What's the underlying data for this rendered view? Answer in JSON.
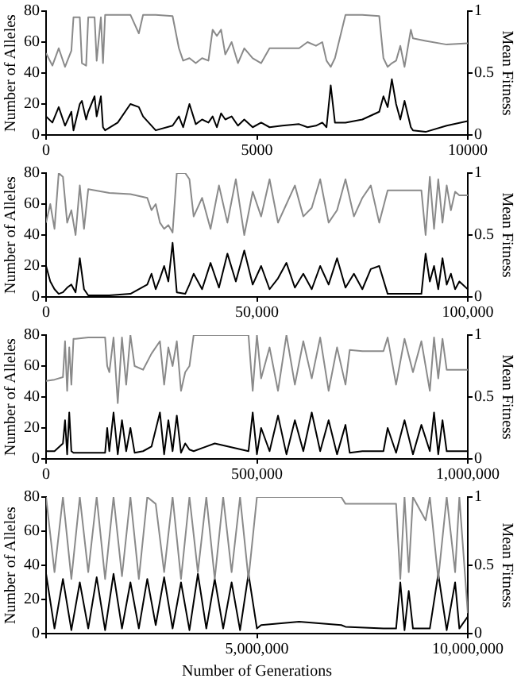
{
  "chart_data": [
    {
      "type": "line",
      "ylabel": "Number of Alleles",
      "y2label": "Mean Fitness",
      "ylim": [
        0,
        80
      ],
      "yticks": [
        0,
        20,
        40,
        60,
        80
      ],
      "y2lim": [
        0,
        1
      ],
      "y2ticks": [
        0,
        0.5,
        1
      ],
      "xlim": [
        0,
        10000
      ],
      "xticks": [
        0,
        5000,
        10000
      ],
      "grid": false,
      "legend": false,
      "x": [
        0,
        150,
        300,
        450,
        600,
        650,
        800,
        850,
        950,
        1000,
        1150,
        1200,
        1300,
        1350,
        1400,
        1700,
        2000,
        2200,
        2300,
        2600,
        3000,
        3150,
        3250,
        3400,
        3550,
        3700,
        3850,
        3950,
        4050,
        4150,
        4250,
        4400,
        4550,
        4700,
        4900,
        5100,
        5300,
        5600,
        6000,
        6200,
        6400,
        6550,
        6650,
        6750,
        6850,
        7100,
        7500,
        7900,
        8000,
        8100,
        8200,
        8300,
        8400,
        8500,
        8650,
        8700,
        9000,
        9500,
        10000
      ],
      "series": [
        {
          "color": "#8a8a8a",
          "axis": "y2",
          "values": [
            0.66,
            0.56,
            0.7,
            0.55,
            0.68,
            0.95,
            0.95,
            0.58,
            0.56,
            0.95,
            0.95,
            0.6,
            0.95,
            0.58,
            0.97,
            0.97,
            0.97,
            0.82,
            0.97,
            0.97,
            0.96,
            0.7,
            0.6,
            0.62,
            0.58,
            0.62,
            0.6,
            0.85,
            0.8,
            0.85,
            0.65,
            0.75,
            0.58,
            0.7,
            0.62,
            0.58,
            0.7,
            0.7,
            0.7,
            0.75,
            0.72,
            0.75,
            0.6,
            0.55,
            0.62,
            0.97,
            0.97,
            0.96,
            0.62,
            0.55,
            0.58,
            0.6,
            0.72,
            0.55,
            0.85,
            0.78,
            0.76,
            0.73,
            0.74
          ]
        },
        {
          "color": "#000000",
          "values": [
            12,
            8,
            18,
            6,
            15,
            3,
            20,
            22,
            10,
            15,
            25,
            12,
            25,
            5,
            3,
            8,
            20,
            18,
            12,
            3,
            6,
            12,
            5,
            20,
            7,
            10,
            8,
            12,
            5,
            14,
            10,
            12,
            6,
            10,
            5,
            8,
            5,
            6,
            7,
            5,
            6,
            8,
            5,
            32,
            8,
            8,
            10,
            15,
            25,
            18,
            36,
            20,
            10,
            22,
            5,
            3,
            2,
            6,
            9
          ]
        }
      ]
    },
    {
      "type": "line",
      "ylabel": "Number of Alleles",
      "y2label": "Mean Fitness",
      "ylim": [
        0,
        80
      ],
      "yticks": [
        0,
        20,
        40,
        60,
        80
      ],
      "y2lim": [
        0,
        1
      ],
      "y2ticks": [
        0,
        0.5,
        1
      ],
      "xlim": [
        0,
        100000
      ],
      "xticks": [
        0,
        {
          "value": 50000,
          "label": "50,000"
        },
        {
          "value": 100000,
          "label": "100,000"
        }
      ],
      "grid": false,
      "legend": false,
      "x": [
        0,
        1000,
        2000,
        3000,
        4000,
        5000,
        6000,
        7000,
        8000,
        9000,
        10000,
        15000,
        20000,
        24000,
        25000,
        26000,
        27000,
        28000,
        29000,
        30000,
        31000,
        33000,
        34000,
        35000,
        37000,
        39000,
        41000,
        43000,
        45000,
        47000,
        49000,
        51000,
        53000,
        55000,
        57000,
        59000,
        61000,
        63000,
        65000,
        67000,
        69000,
        71000,
        73000,
        75000,
        77000,
        79000,
        81000,
        85000,
        89000,
        90000,
        91000,
        92000,
        93000,
        94000,
        95000,
        96000,
        97000,
        98000,
        100000
      ],
      "series": [
        {
          "color": "#8a8a8a",
          "axis": "y2",
          "values": [
            0.6,
            0.75,
            0.55,
            1.0,
            0.97,
            0.6,
            0.7,
            0.5,
            0.9,
            0.55,
            0.87,
            0.84,
            0.83,
            0.8,
            0.7,
            0.75,
            0.6,
            0.55,
            0.58,
            0.52,
            1.0,
            1.0,
            0.95,
            0.65,
            0.8,
            0.55,
            0.9,
            0.6,
            0.95,
            0.5,
            0.85,
            0.65,
            0.95,
            0.6,
            0.75,
            0.9,
            0.65,
            0.72,
            0.95,
            0.6,
            0.7,
            0.95,
            0.65,
            0.8,
            0.9,
            0.6,
            0.86,
            0.86,
            0.86,
            0.5,
            0.97,
            0.55,
            0.95,
            0.6,
            0.9,
            0.7,
            0.85,
            0.82,
            0.82
          ]
        },
        {
          "color": "#000000",
          "values": [
            20,
            10,
            5,
            2,
            3,
            6,
            8,
            3,
            25,
            5,
            1,
            1,
            2,
            8,
            15,
            5,
            12,
            20,
            10,
            35,
            3,
            2,
            8,
            15,
            5,
            22,
            6,
            28,
            10,
            30,
            8,
            20,
            5,
            12,
            22,
            6,
            15,
            5,
            20,
            8,
            25,
            6,
            15,
            5,
            18,
            20,
            2,
            2,
            2,
            28,
            10,
            20,
            5,
            25,
            8,
            15,
            5,
            10,
            5
          ]
        }
      ]
    },
    {
      "type": "line",
      "ylabel": "Number of Alleles",
      "y2label": "Mean Fitness",
      "ylim": [
        0,
        80
      ],
      "yticks": [
        0,
        20,
        40,
        60,
        80
      ],
      "y2lim": [
        0,
        1
      ],
      "y2ticks": [
        0,
        0.5,
        1
      ],
      "xlim": [
        0,
        1000000
      ],
      "xticks": [
        0,
        {
          "value": 500000,
          "label": "500,000"
        },
        {
          "value": 1000000,
          "label": "1,000,000"
        }
      ],
      "grid": false,
      "legend": false,
      "x": [
        0,
        20000,
        40000,
        45000,
        50000,
        55000,
        60000,
        65000,
        70000,
        100000,
        140000,
        145000,
        150000,
        160000,
        170000,
        180000,
        190000,
        200000,
        210000,
        230000,
        250000,
        270000,
        280000,
        290000,
        300000,
        310000,
        320000,
        330000,
        340000,
        350000,
        400000,
        480000,
        490000,
        500000,
        510000,
        530000,
        550000,
        570000,
        590000,
        610000,
        630000,
        650000,
        670000,
        690000,
        710000,
        720000,
        750000,
        800000,
        810000,
        830000,
        850000,
        870000,
        890000,
        910000,
        920000,
        930000,
        940000,
        950000,
        1000000
      ],
      "series": [
        {
          "color": "#8a8a8a",
          "axis": "y2",
          "values": [
            0.63,
            0.64,
            0.66,
            0.95,
            0.55,
            0.9,
            0.6,
            0.97,
            0.97,
            0.98,
            0.98,
            0.75,
            0.7,
            0.98,
            0.45,
            0.98,
            0.6,
            1.0,
            0.75,
            0.72,
            0.85,
            0.95,
            0.6,
            0.9,
            0.75,
            0.95,
            0.55,
            0.7,
            0.75,
            1.0,
            1.0,
            1.0,
            0.55,
            1.0,
            0.65,
            0.9,
            0.55,
            1.0,
            0.6,
            0.95,
            0.65,
            0.98,
            0.55,
            0.9,
            0.6,
            0.88,
            0.87,
            0.87,
            0.98,
            0.6,
            0.97,
            0.7,
            0.95,
            0.55,
            0.98,
            0.65,
            0.97,
            0.72,
            0.72
          ]
        },
        {
          "color": "#000000",
          "values": [
            5,
            5,
            10,
            25,
            3,
            30,
            5,
            4,
            4,
            4,
            4,
            20,
            5,
            30,
            3,
            25,
            5,
            20,
            4,
            5,
            8,
            30,
            3,
            25,
            5,
            28,
            4,
            10,
            6,
            5,
            10,
            5,
            30,
            3,
            20,
            5,
            28,
            3,
            25,
            5,
            30,
            5,
            25,
            3,
            22,
            4,
            5,
            5,
            20,
            4,
            25,
            3,
            22,
            5,
            30,
            3,
            25,
            5,
            5
          ]
        }
      ]
    },
    {
      "type": "line",
      "ylabel": "Number of Alleles",
      "y2label": "Mean Fitness",
      "xlabel": "Number of Generations",
      "ylim": [
        0,
        80
      ],
      "yticks": [
        0,
        20,
        40,
        60,
        80
      ],
      "y2lim": [
        0,
        1
      ],
      "y2ticks": [
        0,
        0.5,
        1
      ],
      "xlim": [
        0,
        10000000
      ],
      "xticks": [
        {
          "value": 0,
          "label": null
        },
        {
          "value": 5000000,
          "label": "5,000,000"
        },
        {
          "value": 10000000,
          "label": "10,000,000"
        }
      ],
      "grid": false,
      "legend": false,
      "x": [
        0,
        200000,
        400000,
        600000,
        800000,
        1000000,
        1200000,
        1400000,
        1600000,
        1800000,
        2000000,
        2200000,
        2400000,
        2600000,
        2800000,
        3000000,
        3200000,
        3400000,
        3600000,
        3800000,
        4000000,
        4200000,
        4400000,
        4600000,
        4800000,
        5000000,
        5100000,
        6000000,
        7000000,
        7100000,
        8000000,
        8300000,
        8400000,
        8500000,
        8600000,
        8700000,
        9000000,
        9100000,
        9300000,
        9500000,
        9700000,
        9800000,
        10000000
      ],
      "series": [
        {
          "color": "#8a8a8a",
          "axis": "y2",
          "values": [
            1.0,
            0.45,
            1.0,
            0.4,
            1.0,
            0.45,
            1.0,
            0.4,
            1.0,
            0.42,
            1.0,
            0.4,
            1.0,
            0.95,
            0.45,
            1.0,
            0.4,
            1.0,
            0.45,
            1.0,
            0.4,
            1.0,
            0.45,
            1.0,
            0.4,
            1.0,
            1.0,
            1.0,
            1.0,
            0.95,
            0.95,
            0.95,
            0.4,
            1.0,
            0.45,
            1.0,
            0.83,
            1.0,
            0.4,
            1.0,
            0.45,
            1.0,
            0.15
          ]
        },
        {
          "color": "#000000",
          "values": [
            35,
            3,
            32,
            2,
            30,
            3,
            33,
            2,
            35,
            3,
            30,
            3,
            32,
            5,
            33,
            3,
            30,
            2,
            35,
            3,
            32,
            3,
            30,
            2,
            35,
            3,
            5,
            7,
            5,
            4,
            3,
            3,
            30,
            2,
            25,
            3,
            3,
            3,
            35,
            2,
            30,
            3,
            10
          ]
        }
      ]
    }
  ]
}
